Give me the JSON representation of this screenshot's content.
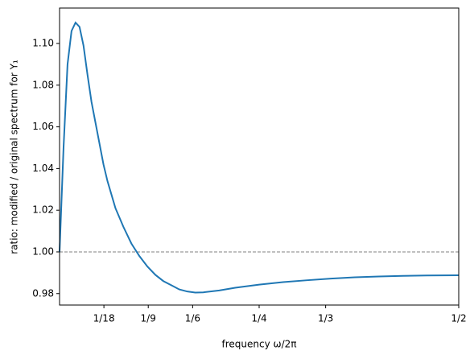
{
  "chart_data": {
    "type": "line",
    "xlabel": "frequency ω/2π",
    "ylabel": "ratio: modified / original spectrum for Y₁",
    "x": [
      0,
      0.005,
      0.01,
      0.015,
      0.02,
      0.025,
      0.03,
      0.035,
      0.04,
      0.045,
      0.05,
      0.055,
      0.06,
      0.07,
      0.08,
      0.09,
      0.1,
      0.11,
      0.12,
      0.13,
      0.14,
      0.15,
      0.16,
      0.17,
      0.18,
      0.2,
      0.22,
      0.25,
      0.28,
      0.31,
      0.34,
      0.37,
      0.4,
      0.43,
      0.46,
      0.5
    ],
    "series": [
      {
        "color": "#1f77b4",
        "values": [
          1.0,
          1.05,
          1.09,
          1.106,
          1.11,
          1.108,
          1.099,
          1.085,
          1.072,
          1.062,
          1.052,
          1.042,
          1.034,
          1.021,
          1.012,
          1.004,
          0.998,
          0.993,
          0.989,
          0.986,
          0.984,
          0.982,
          0.981,
          0.9805,
          0.9806,
          0.9815,
          0.9828,
          0.9843,
          0.9855,
          0.9864,
          0.9872,
          0.9878,
          0.9882,
          0.9885,
          0.9887,
          0.9888
        ]
      }
    ],
    "xlim": [
      0,
      0.5
    ],
    "ylim": [
      0.9745,
      1.117
    ],
    "xticks": [
      {
        "value": 0.05556,
        "label": "1/18"
      },
      {
        "value": 0.1111,
        "label": "1/9"
      },
      {
        "value": 0.1667,
        "label": "1/6"
      },
      {
        "value": 0.25,
        "label": "1/4"
      },
      {
        "value": 0.3333,
        "label": "1/3"
      },
      {
        "value": 0.5,
        "label": "1/2"
      }
    ],
    "yticks": [
      0.98,
      {
        "value": 1.0,
        "label": "1.00"
      },
      1.02,
      1.04,
      1.06,
      1.08,
      {
        "value": 1.1,
        "label": "1.10"
      }
    ],
    "hline": 1,
    "hline_color": "#808080"
  }
}
